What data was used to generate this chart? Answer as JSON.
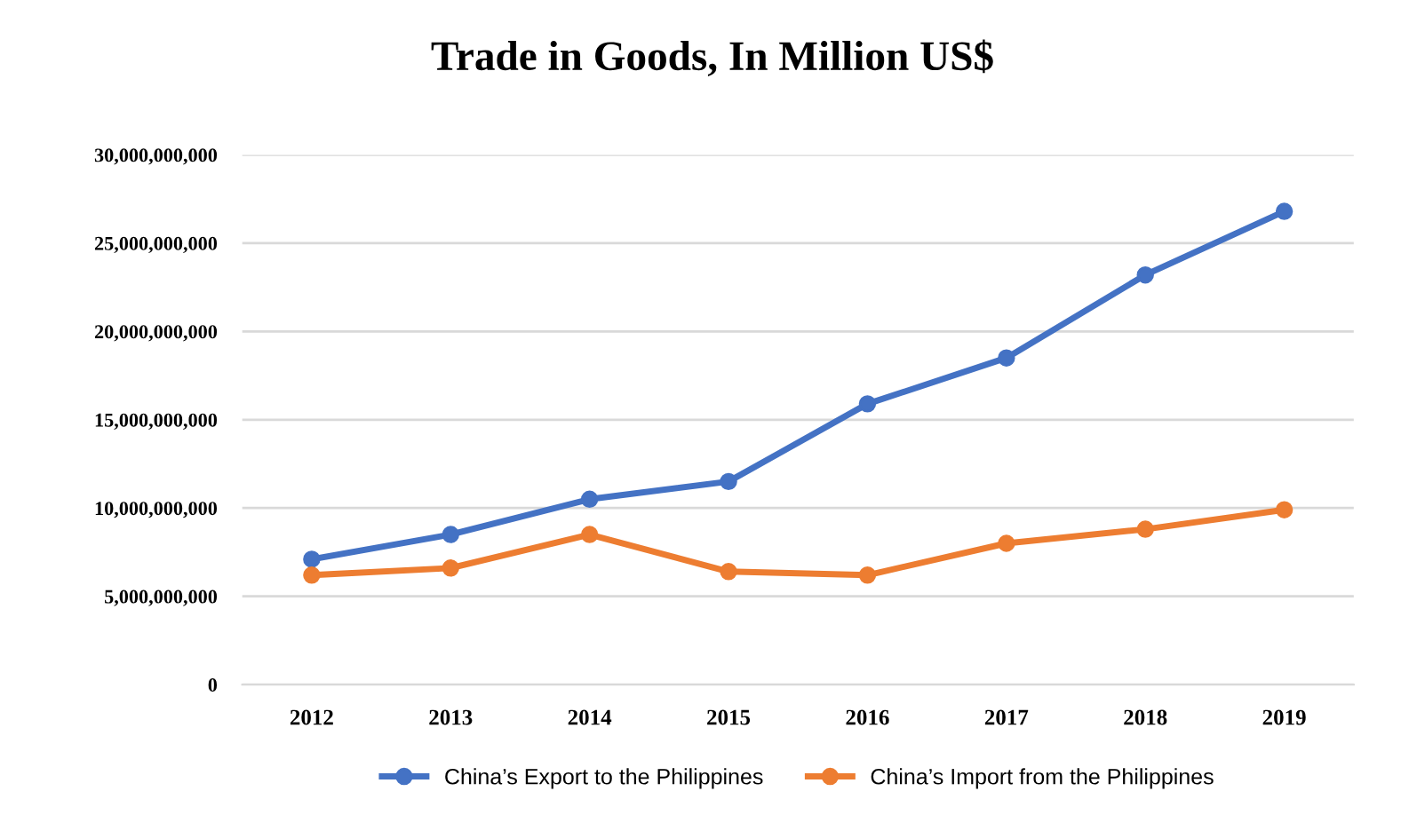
{
  "chart_data": {
    "type": "line",
    "title": "Trade in Goods, In Million US$",
    "categories": [
      "2012",
      "2013",
      "2014",
      "2015",
      "2016",
      "2017",
      "2018",
      "2019"
    ],
    "series": [
      {
        "name": "China’s Export to the Philippines",
        "color": "#4472c4",
        "values": [
          7100000000,
          8500000000,
          10500000000,
          11500000000,
          15900000000,
          18500000000,
          23200000000,
          26800000000
        ]
      },
      {
        "name": "China’s Import from the Philippines",
        "color": "#ed7d31",
        "values": [
          6200000000,
          6600000000,
          8500000000,
          6400000000,
          6200000000,
          8000000000,
          8800000000,
          9900000000
        ]
      }
    ],
    "ylim": [
      0,
      30000000000
    ],
    "yticks": [
      0,
      {
        "value": 5000000000,
        "label": "5,000,000,000"
      },
      {
        "value": 10000000000,
        "label": "10,000,000,000"
      },
      {
        "value": 15000000000,
        "label": "15,000,000,000"
      },
      {
        "value": 20000000000,
        "label": "20,000,000,000"
      },
      {
        "value": 25000000000,
        "label": "25,000,000,000"
      },
      {
        "value": 30000000000,
        "label": "30,000,000,000"
      }
    ],
    "grid": "y",
    "legend": "bottom",
    "marker": "circle",
    "line_style": "solid"
  }
}
